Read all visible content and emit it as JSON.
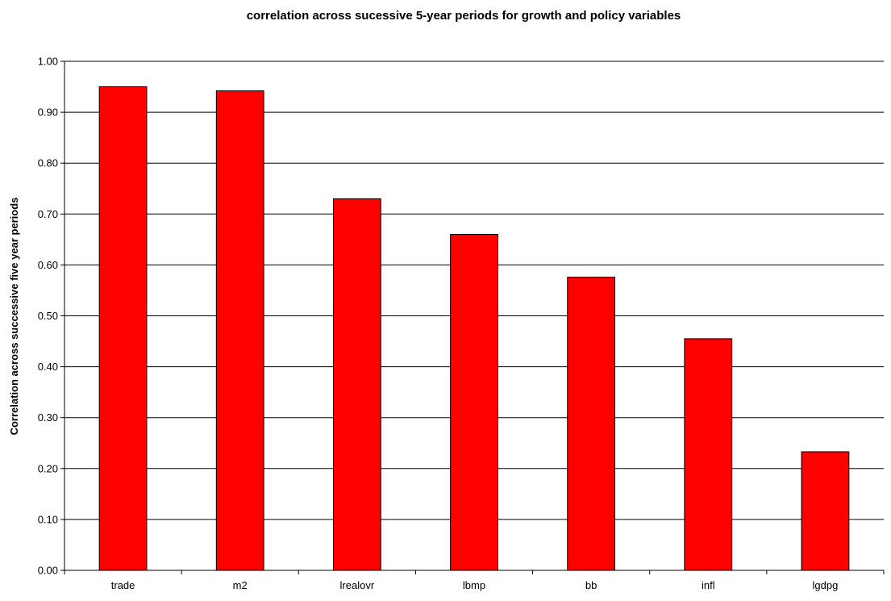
{
  "chart_data": {
    "type": "bar",
    "title": "correlation across sucessive 5-year periods for growth and policy variables",
    "xlabel": "",
    "ylabel": "Correlation across successive five year periods",
    "categories": [
      "trade",
      "m2",
      "lrealovr",
      "lbmp",
      "bb",
      "infl",
      "lgdpg"
    ],
    "values": [
      0.95,
      0.942,
      0.73,
      0.66,
      0.576,
      0.455,
      0.233
    ],
    "ylim": [
      0,
      1
    ],
    "yticks": [
      "0.00",
      "0.10",
      "0.20",
      "0.30",
      "0.40",
      "0.50",
      "0.60",
      "0.70",
      "0.80",
      "0.90",
      "1.00"
    ],
    "grid": "horizontal",
    "legend": "none",
    "bar_color": "#ff0000"
  }
}
